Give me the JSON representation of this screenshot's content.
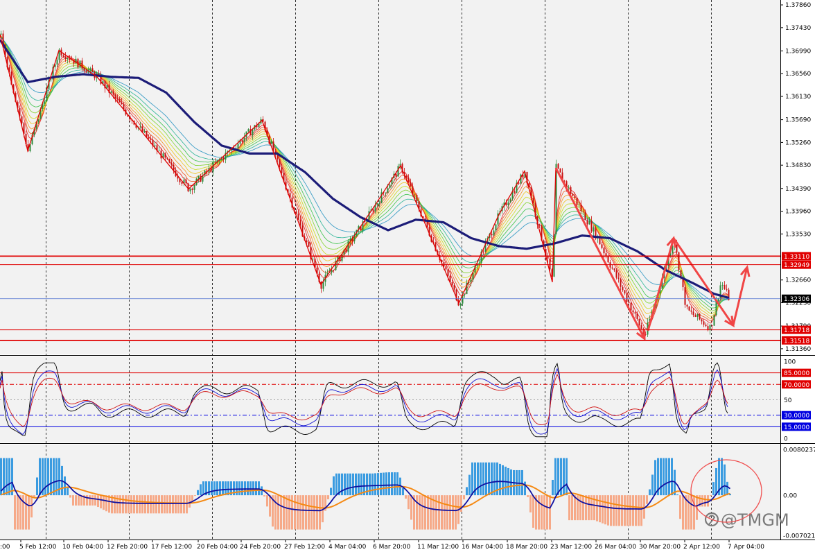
{
  "chart_data": [
    {
      "type": "candlestick",
      "panel": "price",
      "y_ticks": [
        "1.37860",
        "1.37430",
        "1.36990",
        "1.36560",
        "1.36130",
        "1.35690",
        "1.35260",
        "1.34830",
        "1.34390",
        "1.33960",
        "1.33530",
        "1.32660",
        "1.32230",
        "1.31790",
        "1.31360"
      ],
      "ylim": [
        1.3128,
        1.379
      ],
      "current_price": "1.32306",
      "current_price_value": 1.32306,
      "levels": [
        {
          "label": "1.33110",
          "value": 1.3311,
          "color": "#e00000"
        },
        {
          "label": "1.32949",
          "value": 1.32949,
          "color": "#e00000"
        },
        {
          "label": "1.31718",
          "value": 1.31718,
          "color": "#e00000"
        },
        {
          "label": "1.31518",
          "value": 1.31518,
          "color": "#e00000"
        }
      ],
      "x_labels": [
        "5 Feb 12:00",
        "10 Feb 04:00",
        "12 Feb 20:00",
        "17 Feb 12:00",
        "20 Feb 04:00",
        "24 Feb 20:00",
        "27 Feb 12:00",
        "4 Mar 04:00",
        "6 Mar 20:00",
        "11 Mar 12:00",
        "16 Mar 04:00",
        "18 Mar 20:00",
        "23 Mar 12:00",
        "26 Mar 04:00",
        "30 Mar 20:00",
        "2 Apr 12:00",
        "7 Apr 04:00"
      ],
      "x_label_left_partial": ":00",
      "zigzag": [
        {
          "x": 0,
          "y": 1.373
        },
        {
          "x": 40,
          "y": 1.351
        },
        {
          "x": 85,
          "y": 1.37
        },
        {
          "x": 140,
          "y": 1.365
        },
        {
          "x": 272,
          "y": 1.3438
        },
        {
          "x": 378,
          "y": 1.3568
        },
        {
          "x": 463,
          "y": 1.3257
        },
        {
          "x": 540,
          "y": 1.3405
        },
        {
          "x": 578,
          "y": 1.3482
        },
        {
          "x": 662,
          "y": 1.3222
        },
        {
          "x": 720,
          "y": 1.339
        },
        {
          "x": 757,
          "y": 1.3472
        },
        {
          "x": 797,
          "y": 1.3262
        },
        {
          "x": 802,
          "y": 1.3478
        }
      ],
      "arrows": [
        {
          "from": {
            "x": 802,
            "y": 1.3478
          },
          "to": {
            "x": 930,
            "y": 1.3155
          }
        },
        {
          "from": {
            "x": 935,
            "y": 1.317
          },
          "to": {
            "x": 972,
            "y": 1.3345
          }
        },
        {
          "from": {
            "x": 972,
            "y": 1.3345
          },
          "to": {
            "x": 1058,
            "y": 1.318
          }
        },
        {
          "from": {
            "x": 1058,
            "y": 1.318
          },
          "to": {
            "x": 1078,
            "y": 1.329
          }
        }
      ],
      "ma_anchor_points": [
        [
          0,
          1.372
        ],
        [
          40,
          1.364
        ],
        [
          80,
          1.365
        ],
        [
          120,
          1.3655
        ],
        [
          160,
          1.365
        ],
        [
          200,
          1.3648
        ],
        [
          240,
          1.362
        ],
        [
          280,
          1.3565
        ],
        [
          320,
          1.352
        ],
        [
          360,
          1.3505
        ],
        [
          400,
          1.3505
        ],
        [
          440,
          1.347
        ],
        [
          480,
          1.342
        ],
        [
          520,
          1.3385
        ],
        [
          560,
          1.336
        ],
        [
          600,
          1.338
        ],
        [
          640,
          1.3375
        ],
        [
          680,
          1.3345
        ],
        [
          720,
          1.333
        ],
        [
          760,
          1.3325
        ],
        [
          800,
          1.3335
        ],
        [
          840,
          1.335
        ],
        [
          880,
          1.3345
        ],
        [
          920,
          1.332
        ],
        [
          960,
          1.3285
        ],
        [
          1000,
          1.326
        ],
        [
          1030,
          1.324
        ],
        [
          1052,
          1.3232
        ]
      ]
    },
    {
      "type": "line",
      "panel": "oscillator",
      "y_ticks": [
        "100",
        "50",
        "0"
      ],
      "levels": [
        {
          "label": "85.0000",
          "value": 85,
          "color": "#e00000"
        },
        {
          "label": "70.0000",
          "value": 70,
          "color": "#e00000"
        },
        {
          "label": "30.0000",
          "value": 30,
          "color": "#0000e0"
        },
        {
          "label": "15.0000",
          "value": 15,
          "color": "#0000e0"
        }
      ],
      "ylim": [
        0,
        100
      ]
    },
    {
      "type": "bar",
      "panel": "macd",
      "y_ticks": [
        "0.0080237",
        "0.00",
        "-0.007021"
      ],
      "ylim": [
        -0.007021,
        0.0080237
      ]
    }
  ],
  "watermark": {
    "text": "@TMGM"
  },
  "colors": {
    "bg": "#ffffff",
    "grid": "#000000",
    "up": "#2e8b3c",
    "down": "#c81010",
    "zigzag": "#e00000",
    "arrow": "#f04545",
    "ma": "#1c1c78",
    "hist_pos": "#3a9be0",
    "hist_neg": "#f6a988",
    "signal": "#f58a14",
    "line_main": "#1010a0"
  }
}
